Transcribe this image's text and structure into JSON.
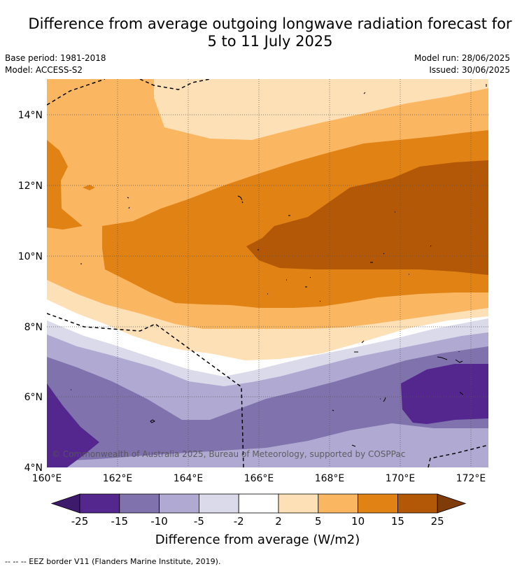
{
  "title_line1": "Difference from average outgoing longwave radiation forecast for",
  "title_line2": "5 to 11 July 2025",
  "meta": {
    "base_period": "Base period: 1981-2018",
    "model": "Model: ACCESS-S2",
    "model_run": "Model run: 28/06/2025",
    "issued": "Issued: 30/06/2025"
  },
  "map": {
    "lat_ticks": [
      "14°N",
      "12°N",
      "10°N",
      "8°N",
      "6°N",
      "4°N"
    ],
    "lon_ticks": [
      "160°E",
      "162°E",
      "164°E",
      "166°E",
      "168°E",
      "170°E",
      "172°E"
    ],
    "lat_range": [
      4,
      15
    ],
    "lon_range": [
      160,
      172.5
    ],
    "copyright": "© Commonwealth of Australia 2025, Bureau of Meteorology, supported by COSPPac"
  },
  "colorbar": {
    "labels": [
      "-25",
      "-15",
      "-10",
      "-5",
      "-2",
      "2",
      "5",
      "10",
      "15",
      "25"
    ],
    "colors": [
      "#3d1a6b",
      "#54278f",
      "#8072ac",
      "#b0a9d2",
      "#dadaeb",
      "#ffffff",
      "#fee0b6",
      "#fbb661",
      "#e08214",
      "#b35806",
      "#7f3b08"
    ],
    "title": "Difference from average (W/m2)"
  },
  "footer": "--  --  -- EEZ border V11 (Flanders Marine Institute, 2019)."
}
